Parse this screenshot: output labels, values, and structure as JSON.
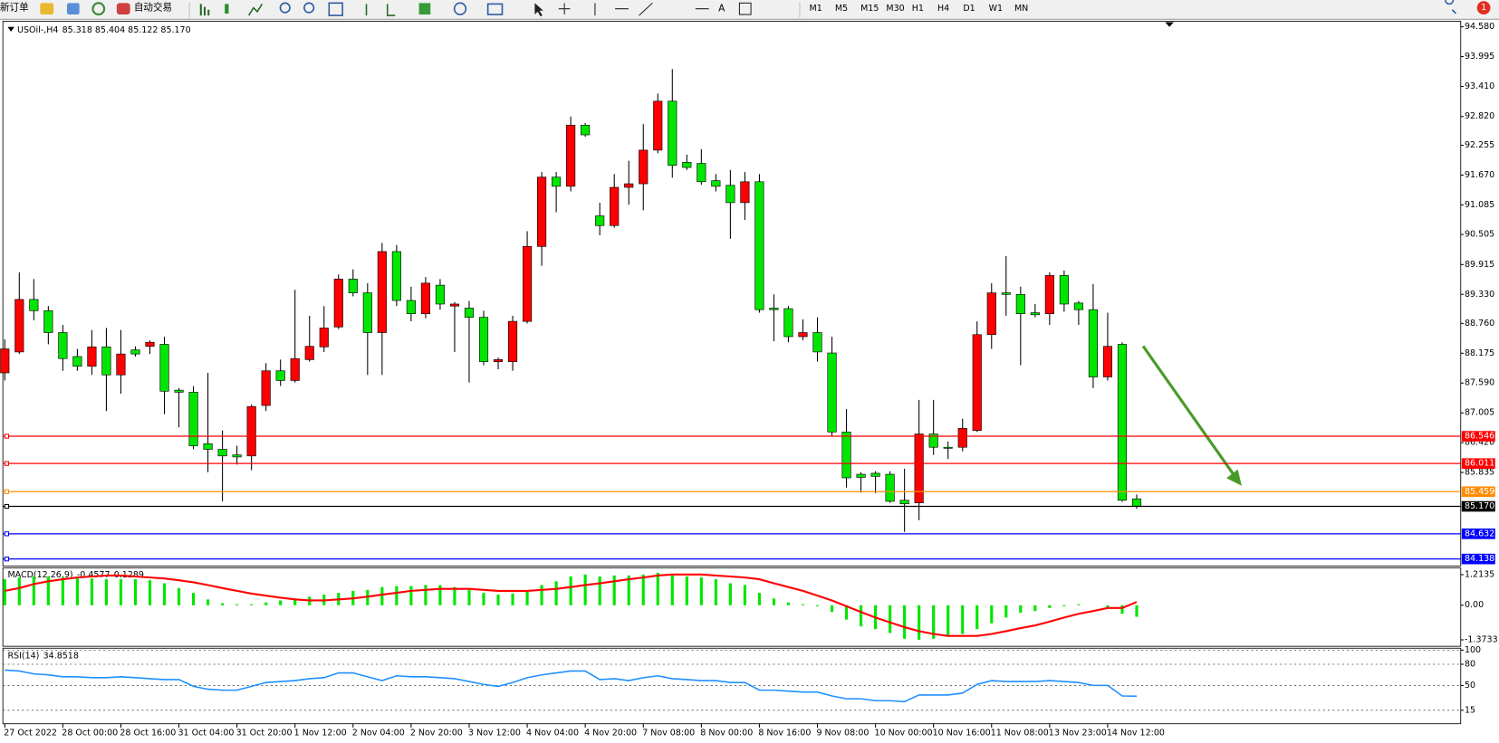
{
  "toolbar": {
    "new_order": "新订单",
    "auto_trading": "自动交易",
    "timeframes": [
      "M1",
      "M5",
      "M15",
      "M30",
      "H1",
      "H4",
      "D1",
      "W1",
      "MN"
    ],
    "notifications": 1
  },
  "chart_data": [
    {
      "type": "candlestick",
      "symbol": "USOil-,H4",
      "quote": "85.318 85.404 85.122 85.170",
      "categories": [
        "27 Oct 2022",
        null,
        null,
        null,
        "28 Oct 00:00",
        null,
        null,
        null,
        "28 Oct 16:00",
        null,
        null,
        null,
        "31 Oct 04:00",
        null,
        null,
        null,
        "31 Oct 20:00",
        null,
        null,
        null,
        "1 Nov 12:00",
        null,
        null,
        null,
        "2 Nov 04:00",
        null,
        null,
        null,
        "2 Nov 20:00",
        null,
        null,
        null,
        "3 Nov 12:00",
        null,
        null,
        null,
        "4 Nov 04:00",
        null,
        null,
        null,
        "4 Nov 20:00",
        null,
        null,
        null,
        "7 Nov 08:00",
        null,
        null,
        null,
        "8 Nov 00:00",
        null,
        null,
        null,
        "8 Nov 16:00",
        null,
        null,
        null,
        "9 Nov 08:00",
        null,
        null,
        null,
        "10 Nov 00:00",
        null,
        null,
        null,
        "10 Nov 16:00",
        null,
        null,
        null,
        "11 Nov 08:00",
        null,
        null,
        null,
        "13 Nov 23:00",
        null,
        null,
        null,
        "14 Nov 12:00",
        null,
        null
      ],
      "open": [
        87.79,
        88.2,
        89.23,
        89.01,
        88.58,
        88.11,
        87.92,
        88.3,
        87.75,
        88.24,
        88.31,
        88.35,
        87.45,
        87.41,
        86.4,
        86.29,
        86.18,
        86.16,
        87.15,
        87.83,
        87.64,
        88.05,
        88.3,
        88.69,
        89.63,
        89.36,
        88.58,
        90.17,
        89.21,
        88.95,
        89.51,
        89.1,
        89.06,
        88.88,
        88.01,
        88.01,
        88.8,
        90.27,
        91.63,
        91.45,
        92.65,
        90.87,
        90.68,
        91.43,
        91.5,
        92.16,
        93.12,
        91.92,
        91.9,
        91.56,
        91.47,
        91.13,
        91.54,
        89.06,
        89.05,
        88.5,
        88.58,
        88.18,
        86.63,
        85.8,
        85.82,
        85.8,
        85.29,
        85.24,
        86.59,
        86.33,
        86.33,
        86.66,
        88.54,
        89.36,
        89.33,
        88.97,
        88.95,
        89.7,
        89.16,
        89.03,
        87.71,
        88.35,
        85.318
      ],
      "high": [
        88.45,
        89.76,
        89.63,
        89.1,
        88.73,
        88.26,
        88.63,
        88.67,
        88.63,
        88.31,
        88.43,
        88.5,
        87.49,
        87.53,
        87.79,
        86.66,
        86.36,
        87.17,
        87.98,
        88.05,
        89.42,
        88.91,
        89.1,
        89.72,
        89.82,
        89.55,
        90.34,
        90.3,
        89.48,
        89.67,
        89.63,
        89.18,
        89.2,
        89.01,
        88.09,
        88.91,
        90.57,
        91.73,
        91.73,
        92.82,
        92.69,
        91.13,
        91.69,
        91.95,
        92.67,
        93.27,
        93.75,
        92.07,
        92.18,
        91.69,
        91.77,
        91.73,
        91.69,
        89.33,
        89.1,
        88.84,
        88.88,
        88.5,
        87.08,
        85.84,
        85.86,
        85.86,
        85.91,
        87.26,
        87.26,
        86.44,
        86.89,
        88.8,
        89.55,
        90.08,
        89.48,
        89.14,
        89.76,
        89.8,
        89.2,
        89.53,
        88.97,
        88.39,
        85.404
      ],
      "low": [
        87.64,
        88.16,
        88.82,
        88.35,
        87.83,
        87.83,
        87.75,
        87.04,
        87.38,
        88.11,
        88.16,
        86.98,
        86.72,
        86.29,
        85.84,
        85.27,
        85.99,
        85.88,
        87.04,
        87.53,
        87.6,
        88.01,
        88.2,
        88.65,
        89.29,
        87.75,
        87.75,
        89.1,
        88.8,
        88.86,
        89.03,
        88.2,
        87.6,
        87.94,
        87.86,
        87.83,
        88.76,
        89.89,
        90.94,
        91.35,
        92.42,
        90.49,
        90.64,
        91.09,
        90.98,
        92.1,
        91.62,
        91.77,
        91.48,
        91.35,
        90.42,
        90.79,
        88.97,
        88.41,
        88.39,
        88.43,
        88.01,
        86.55,
        85.54,
        85.44,
        85.43,
        85.24,
        84.67,
        84.9,
        86.18,
        86.1,
        86.25,
        86.63,
        88.26,
        88.91,
        87.94,
        88.88,
        88.73,
        88.99,
        88.73,
        87.49,
        87.64,
        85.26,
        85.122
      ],
      "close": [
        88.26,
        89.23,
        89.01,
        88.58,
        88.07,
        87.92,
        88.3,
        87.75,
        88.16,
        88.16,
        88.39,
        87.43,
        87.41,
        86.36,
        86.29,
        86.16,
        86.14,
        87.13,
        87.83,
        87.64,
        88.07,
        88.31,
        88.67,
        89.63,
        89.36,
        88.58,
        90.17,
        89.21,
        88.95,
        89.55,
        89.14,
        89.14,
        88.88,
        88.01,
        88.05,
        88.8,
        90.27,
        91.63,
        91.45,
        92.65,
        92.46,
        90.68,
        91.43,
        91.5,
        92.16,
        93.12,
        91.86,
        91.82,
        91.54,
        91.45,
        91.13,
        91.54,
        89.03,
        89.03,
        88.5,
        88.58,
        88.2,
        86.63,
        85.73,
        85.74,
        85.76,
        85.27,
        85.22,
        86.59,
        86.33,
        86.31,
        86.7,
        88.54,
        89.36,
        89.33,
        88.95,
        88.93,
        89.7,
        89.14,
        89.03,
        87.71,
        88.31,
        85.29,
        85.17
      ],
      "up_color": "#ff0000",
      "down_color": "#00e600",
      "ylim": [
        84.0,
        94.69
      ],
      "yticks": [
        {
          "value": 94.58,
          "label": "94.580"
        },
        93.995,
        {
          "value": 93.41,
          "label": "93.410"
        },
        {
          "value": 92.82,
          "label": "92.820"
        },
        92.255,
        {
          "value": 91.67,
          "label": "91.670"
        },
        91.085,
        90.505,
        89.915,
        {
          "value": 89.33,
          "label": "89.330"
        },
        {
          "value": 88.76,
          "label": "88.760"
        },
        88.175,
        {
          "value": 87.59,
          "label": "87.590"
        },
        87.005,
        {
          "value": 86.42,
          "label": "86.420"
        },
        85.835
      ],
      "levels": [
        {
          "value": 86.546,
          "color": "#ff0000"
        },
        {
          "value": 86.011,
          "color": "#ff0000"
        },
        {
          "value": 85.459,
          "color": "#ff8c00"
        },
        {
          "value": 85.17,
          "label": "85.170",
          "color": "#000000"
        },
        {
          "value": 84.632,
          "color": "#0000ff"
        },
        {
          "value": 84.138,
          "color": "#0000ff"
        }
      ]
    },
    {
      "type": "macd",
      "name": "MACD(12,26,9)",
      "series": [
        {
          "style": "histogram",
          "color": "#00e600",
          "values": [
            1.03,
            1.1,
            1.14,
            1.14,
            1.1,
            1.06,
            1.06,
            1.03,
            1.03,
            1.03,
            0.99,
            0.87,
            0.68,
            0.49,
            0.23,
            0.08,
            0.04,
            0.04,
            0.11,
            0.19,
            0.27,
            0.34,
            0.42,
            0.49,
            0.57,
            0.61,
            0.72,
            0.76,
            0.76,
            0.8,
            0.8,
            0.72,
            0.61,
            0.49,
            0.42,
            0.46,
            0.57,
            0.8,
            0.95,
            1.14,
            1.22,
            1.14,
            1.18,
            1.18,
            1.22,
            1.29,
            1.18,
            1.14,
            1.1,
            1.03,
            0.87,
            0.8,
            0.49,
            0.27,
            0.11,
            0.04,
            -0.04,
            -0.27,
            -0.57,
            -0.84,
            -0.95,
            -1.1,
            -1.33,
            -1.37,
            -1.33,
            -1.22,
            -1.14,
            -0.95,
            -0.72,
            -0.49,
            -0.3,
            -0.23,
            -0.11,
            -0.04,
            0.04,
            0,
            -0.11,
            -0.34,
            -0.4577
          ]
        },
        {
          "style": "line",
          "color": "#ff0000",
          "values": [
            0.57,
            0.68,
            0.84,
            0.95,
            1.03,
            1.1,
            1.14,
            1.18,
            1.18,
            1.14,
            1.1,
            1.06,
            0.99,
            0.91,
            0.8,
            0.68,
            0.57,
            0.46,
            0.38,
            0.3,
            0.23,
            0.19,
            0.19,
            0.23,
            0.27,
            0.34,
            0.42,
            0.49,
            0.57,
            0.61,
            0.65,
            0.65,
            0.65,
            0.61,
            0.57,
            0.57,
            0.57,
            0.61,
            0.65,
            0.72,
            0.8,
            0.87,
            0.95,
            1.03,
            1.1,
            1.18,
            1.22,
            1.22,
            1.22,
            1.18,
            1.14,
            1.1,
            1.03,
            0.87,
            0.72,
            0.57,
            0.38,
            0.19,
            -0.04,
            -0.27,
            -0.49,
            -0.68,
            -0.87,
            -1.03,
            -1.14,
            -1.22,
            -1.22,
            -1.22,
            -1.14,
            -1.03,
            -0.91,
            -0.8,
            -0.65,
            -0.49,
            -0.34,
            -0.23,
            -0.11,
            -0.11,
            0.1289
          ]
        }
      ],
      "ylim": [
        -1.63,
        1.48
      ],
      "yticks": [
        1.2135,
        {
          "value": 0,
          "label": "0.00"
        },
        -1.3733
      ]
    },
    {
      "type": "rsi",
      "name": "RSI(14)",
      "color": "#1e90ff",
      "values": [
        71.8,
        70.5,
        66.4,
        65.0,
        62.3,
        62.3,
        61.0,
        61.0,
        62.3,
        61.0,
        59.6,
        58.3,
        58.3,
        48.8,
        44.7,
        43.4,
        43.4,
        48.8,
        54.2,
        55.6,
        56.9,
        59.6,
        61.0,
        67.8,
        67.8,
        62.3,
        56.9,
        63.7,
        62.3,
        62.3,
        61.0,
        59.6,
        55.6,
        51.5,
        48.8,
        54.2,
        61.0,
        65.0,
        67.8,
        70.5,
        70.5,
        58.3,
        59.6,
        56.9,
        61.0,
        63.7,
        59.6,
        58.3,
        56.9,
        56.9,
        54.2,
        54.2,
        43.4,
        43.4,
        42.0,
        40.7,
        40.7,
        35.2,
        31.2,
        31.2,
        28.5,
        28.5,
        27.1,
        36.6,
        36.6,
        36.6,
        39.3,
        51.5,
        56.9,
        55.6,
        55.6,
        55.6,
        56.9,
        55.6,
        54.2,
        50.1,
        50.1,
        35.2,
        34.8518
      ],
      "ylim": [
        0,
        100
      ],
      "yticks": [
        100,
        80,
        50,
        15
      ]
    }
  ]
}
